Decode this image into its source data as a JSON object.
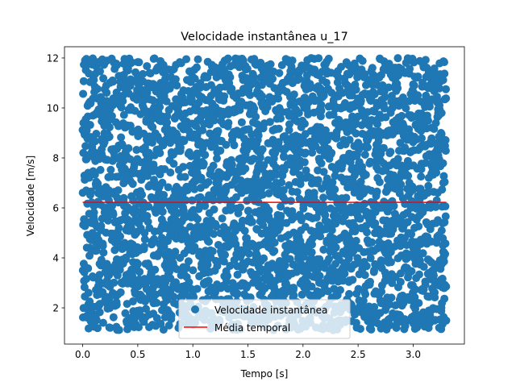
{
  "chart_data": {
    "type": "scatter",
    "title": "Velocidade instantânea u_17",
    "xlabel": "Tempo [s]",
    "ylabel": "Velocidade [m/s]",
    "xlim": [
      -0.165,
      3.465
    ],
    "ylim": [
      0.55,
      12.45
    ],
    "xticks": [
      0.0,
      0.5,
      1.0,
      1.5,
      2.0,
      2.5,
      3.0
    ],
    "xtick_labels": [
      "0.0",
      "0.5",
      "1.0",
      "1.5",
      "2.0",
      "2.5",
      "3.0"
    ],
    "yticks": [
      2,
      4,
      6,
      8,
      10,
      12
    ],
    "ytick_labels": [
      "2",
      "4",
      "6",
      "8",
      "10",
      "12"
    ],
    "grid": false,
    "legend_position": "lower center",
    "series": [
      {
        "name": "Velocidade instantânea",
        "kind": "scatter",
        "color": "#1f77b4",
        "x_range": [
          0.0,
          3.3
        ],
        "y_range": [
          1.1,
          12.0
        ],
        "sample_count": 3300,
        "note_values": "dense noisy samples roughly uniform between about 1.1 and 12.0 m/s"
      },
      {
        "name": "Média temporal",
        "kind": "line",
        "color": "#ff0000",
        "x": [
          0.0,
          3.3
        ],
        "y": [
          6.22,
          6.22
        ]
      }
    ]
  }
}
